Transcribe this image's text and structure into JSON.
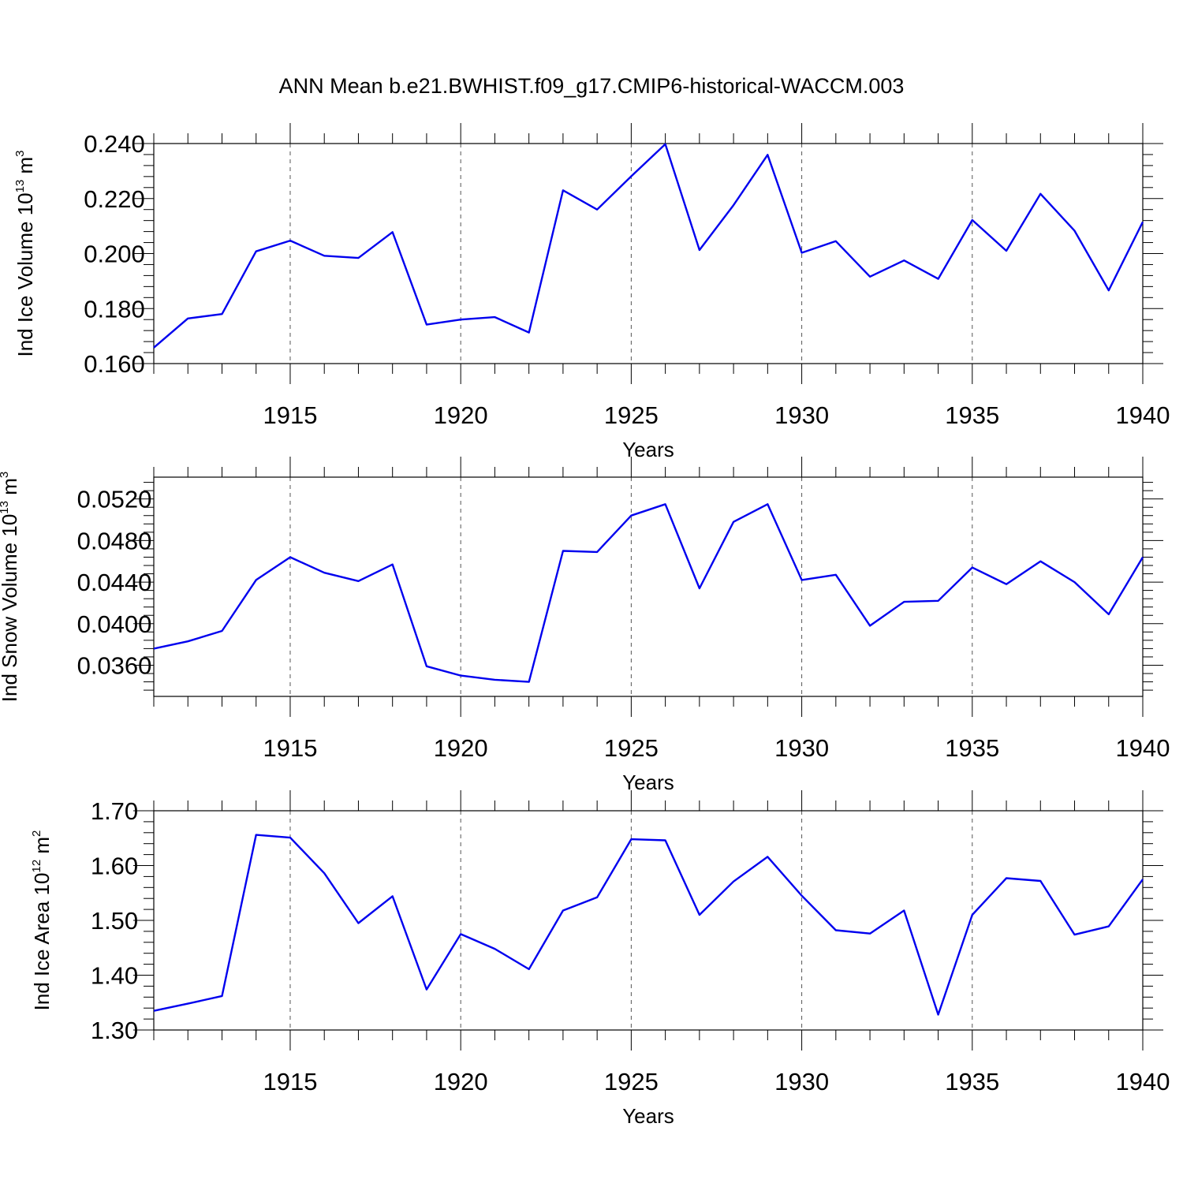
{
  "figure": {
    "title": "ANN Mean b.e21.BWHIST.f09_g17.CMIP6-historical-WACCM.003"
  },
  "chart_data": [
    {
      "type": "line",
      "xlabel": "Years",
      "ylabel": {
        "text": "Ind Ice Volume 10",
        "sup1": "13",
        "mid": " m",
        "sup2": "3"
      },
      "xlim": [
        1911,
        1940
      ],
      "ylim": [
        0.16,
        0.24
      ],
      "xticks": [
        1915,
        1920,
        1925,
        1930,
        1935,
        1940
      ],
      "xtick_labels": [
        "1915",
        "1920",
        "1925",
        "1930",
        "1935",
        "1940"
      ],
      "yticks": [
        0.16,
        0.18,
        0.2,
        0.22,
        0.24
      ],
      "ytick_labels": [
        "0.160",
        "0.180",
        "0.200",
        "0.220",
        "0.240"
      ],
      "y_minor_step": 0.004,
      "grid": "vertical dashed at major x ticks",
      "color": "#0000ee",
      "x": [
        1911,
        1912,
        1913,
        1914,
        1915,
        1916,
        1917,
        1918,
        1919,
        1920,
        1921,
        1922,
        1923,
        1924,
        1925,
        1926,
        1927,
        1928,
        1929,
        1930,
        1931,
        1932,
        1933,
        1934,
        1935,
        1936,
        1937,
        1938,
        1939,
        1940
      ],
      "values": [
        0.1658,
        0.1764,
        0.178,
        0.2008,
        0.2047,
        0.1992,
        0.1984,
        0.2078,
        0.1742,
        0.176,
        0.1769,
        0.1713,
        0.223,
        0.216,
        0.2281,
        0.2398,
        0.2013,
        0.2176,
        0.2359,
        0.2003,
        0.2045,
        0.1916,
        0.1975,
        0.1908,
        0.2122,
        0.201,
        0.2217,
        0.2083,
        0.1866,
        0.2115
      ]
    },
    {
      "type": "line",
      "xlabel": "Years",
      "ylabel": {
        "text": "Ind Snow Volume 10",
        "sup1": "13",
        "mid": " m",
        "sup2": "3"
      },
      "xlim": [
        1911,
        1940
      ],
      "ylim": [
        0.033,
        0.0541
      ],
      "xticks": [
        1915,
        1920,
        1925,
        1930,
        1935,
        1940
      ],
      "xtick_labels": [
        "1915",
        "1920",
        "1925",
        "1930",
        "1935",
        "1940"
      ],
      "yticks": [
        0.036,
        0.04,
        0.044,
        0.048,
        0.052
      ],
      "ytick_labels": [
        "0.0360",
        "0.0400",
        "0.0440",
        "0.0480",
        "0.0520"
      ],
      "y_minor_step": 0.0008,
      "grid": "vertical dashed at major x ticks",
      "color": "#0000ee",
      "x": [
        1911,
        1912,
        1913,
        1914,
        1915,
        1916,
        1917,
        1918,
        1919,
        1920,
        1921,
        1922,
        1923,
        1924,
        1925,
        1926,
        1927,
        1928,
        1929,
        1930,
        1931,
        1932,
        1933,
        1934,
        1935,
        1936,
        1937,
        1938,
        1939,
        1940
      ],
      "values": [
        0.0376,
        0.0383,
        0.0393,
        0.0442,
        0.0464,
        0.0449,
        0.0441,
        0.0457,
        0.0359,
        0.035,
        0.0346,
        0.0344,
        0.047,
        0.0469,
        0.0504,
        0.0515,
        0.0434,
        0.0498,
        0.0515,
        0.0442,
        0.0447,
        0.0398,
        0.0421,
        0.0422,
        0.0454,
        0.0438,
        0.046,
        0.044,
        0.0409,
        0.0464
      ]
    },
    {
      "type": "line",
      "xlabel": "Years",
      "ylabel": {
        "text": "Ind Ice Area 10",
        "sup1": "12",
        "mid": " m",
        "sup2": "2"
      },
      "xlim": [
        1911,
        1940
      ],
      "ylim": [
        1.3,
        1.7
      ],
      "xticks": [
        1915,
        1920,
        1925,
        1930,
        1935,
        1940
      ],
      "xtick_labels": [
        "1915",
        "1920",
        "1925",
        "1930",
        "1935",
        "1940"
      ],
      "yticks": [
        1.3,
        1.4,
        1.5,
        1.6,
        1.7
      ],
      "ytick_labels": [
        "1.30",
        "1.40",
        "1.50",
        "1.60",
        "1.70"
      ],
      "y_minor_step": 0.02,
      "grid": "vertical dashed at major x ticks",
      "color": "#0000ee",
      "x": [
        1911,
        1912,
        1913,
        1914,
        1915,
        1916,
        1917,
        1918,
        1919,
        1920,
        1921,
        1922,
        1923,
        1924,
        1925,
        1926,
        1927,
        1928,
        1929,
        1930,
        1931,
        1932,
        1933,
        1934,
        1935,
        1936,
        1937,
        1938,
        1939,
        1940
      ],
      "values": [
        1.335,
        1.348,
        1.362,
        1.656,
        1.651,
        1.586,
        1.495,
        1.544,
        1.374,
        1.475,
        1.448,
        1.411,
        1.518,
        1.542,
        1.648,
        1.646,
        1.51,
        1.571,
        1.616,
        1.545,
        1.482,
        1.476,
        1.518,
        1.328,
        1.51,
        1.577,
        1.572,
        1.474,
        1.489,
        1.575
      ]
    }
  ]
}
